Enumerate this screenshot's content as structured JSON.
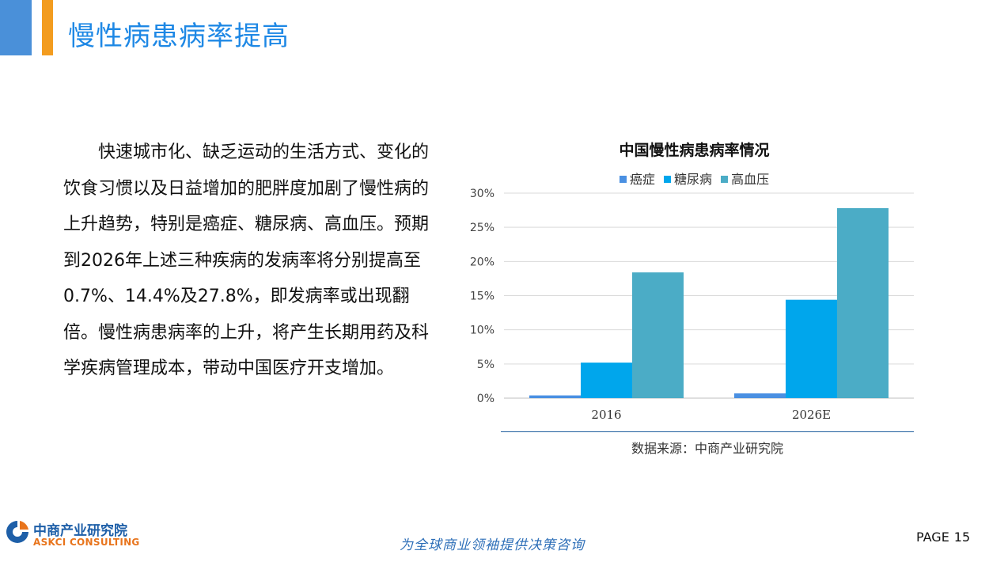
{
  "header": {
    "title": "慢性病患病率提高"
  },
  "body": {
    "paragraph": "快速城市化、缺乏运动的生活方式、变化的饮食习惯以及日益增加的肥胖度加剧了慢性病的上升趋势，特别是癌症、糖尿病、高血压。预期到2026年上述三种疾病的发病率将分别提高至0.7%、14.4%及27.8%，即发病率或出现翻倍。慢性病患病率的上升，将产生长期用药及科学疾病管理成本，带动中国医疗开支增加。"
  },
  "chart_data": {
    "type": "bar",
    "title": "中国慢性病患病率情况",
    "categories": [
      "2016",
      "2026E"
    ],
    "series": [
      {
        "name": "癌症",
        "values": [
          0.4,
          0.7
        ],
        "color": "#4A90E2"
      },
      {
        "name": "糖尿病",
        "values": [
          5.2,
          14.4
        ],
        "color": "#00A6EC"
      },
      {
        "name": "高血压",
        "values": [
          18.4,
          27.8
        ],
        "color": "#4BACC6"
      }
    ],
    "yticks": [
      "0%",
      "5%",
      "10%",
      "15%",
      "20%",
      "25%",
      "30%"
    ],
    "ylim": [
      0,
      30
    ],
    "grid": true,
    "legend_position": "top",
    "source": "数据来源：中商产业研究院"
  },
  "footer": {
    "logo_cn": "中商产业研究院",
    "logo_en": "ASKCI CONSULTING",
    "slogan": "为全球商业领袖提供决策咨询",
    "page_label": "PAGE",
    "page_number": "15"
  },
  "colors": {
    "title_blue": "#1E88E5",
    "accent_orange": "#F39C1F",
    "header_blue": "#4A90D9"
  }
}
